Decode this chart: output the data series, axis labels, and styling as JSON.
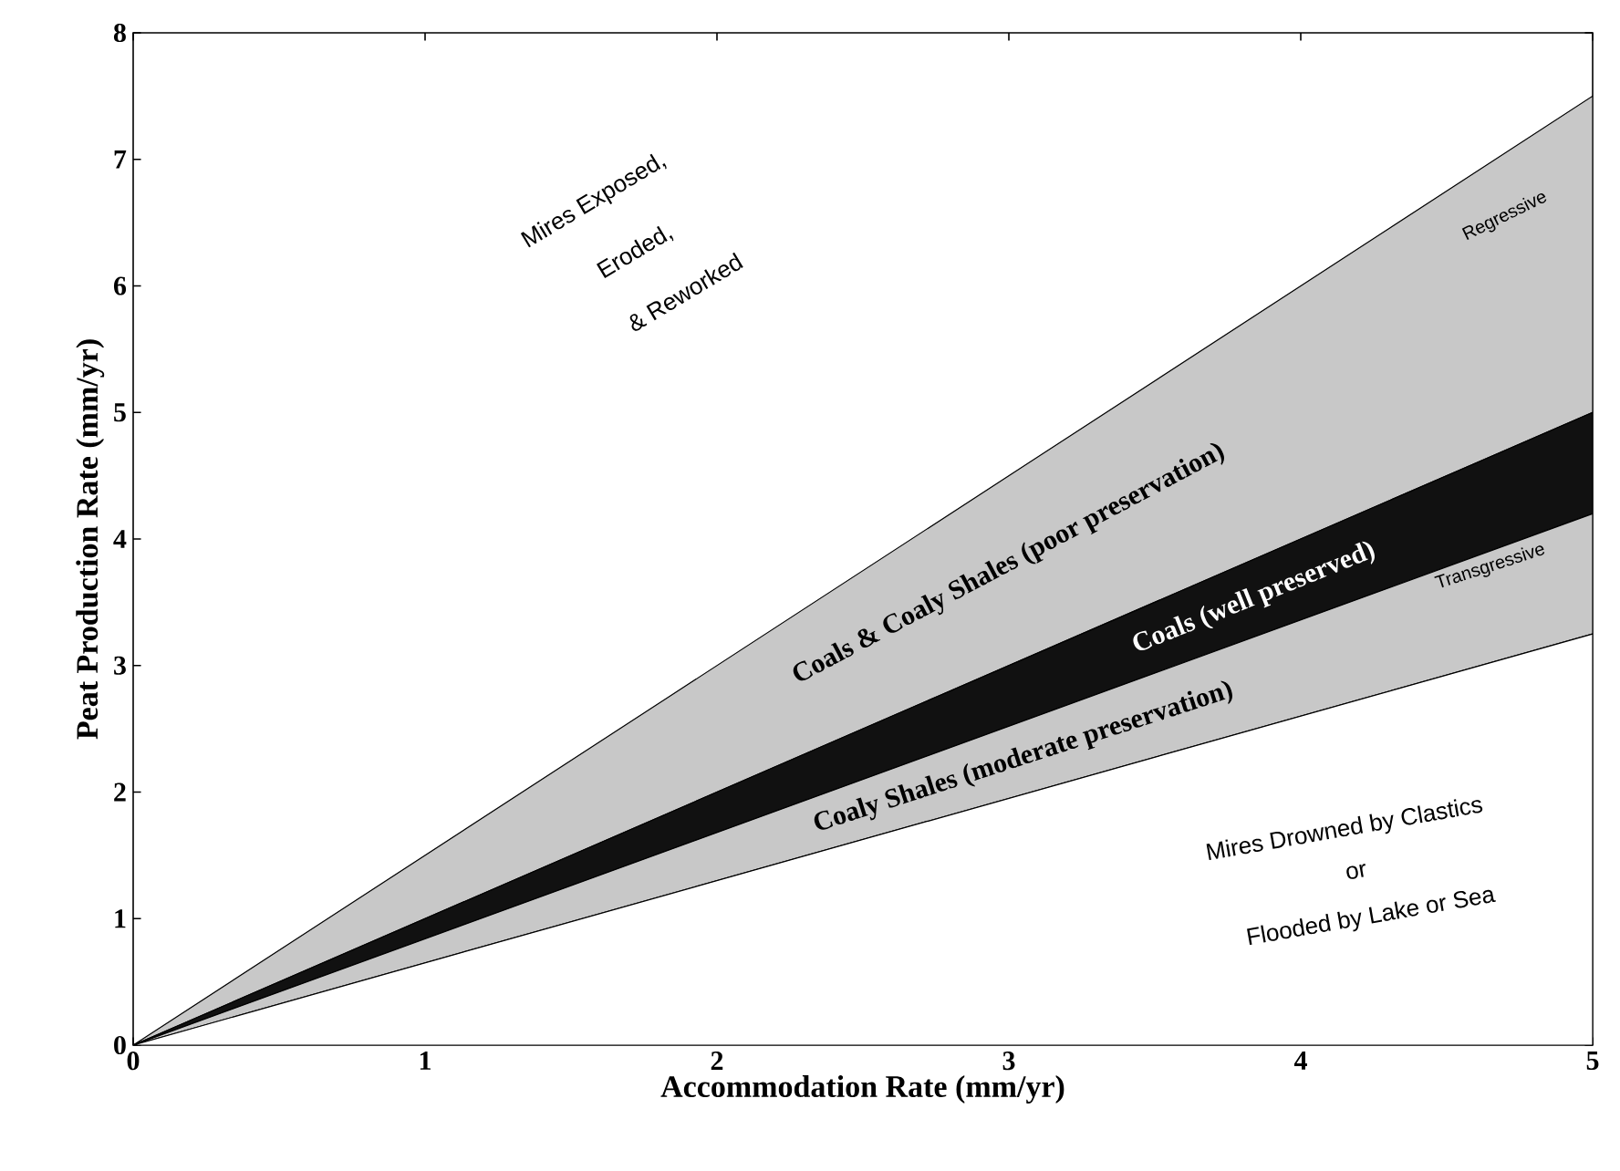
{
  "chart_data": {
    "type": "area",
    "stacked": true,
    "xlabel": "Accommodation Rate (mm/yr)",
    "ylabel": "Peat Production Rate (mm/yr)",
    "x": [
      0,
      5
    ],
    "series": [
      {
        "color": "#ffffff",
        "values": [
          0,
          3.25
        ]
      },
      {
        "color": "#c8c8c8",
        "values": [
          0,
          0.95
        ]
      },
      {
        "color": "#111111",
        "values": [
          0,
          0.8
        ]
      },
      {
        "color": "#c8c8c8",
        "values": [
          0,
          2.5
        ]
      }
    ],
    "xlim": [
      0,
      5
    ],
    "ylim": [
      0,
      8
    ],
    "xticks": [
      0,
      1,
      2,
      3,
      4,
      5
    ],
    "yticks": [
      0,
      1,
      2,
      3,
      4,
      5,
      6,
      7,
      8
    ],
    "grid": false,
    "annotations": [
      "Mires Exposed,",
      "Eroded,",
      "& Reworked",
      "Regressive",
      "Coals & Coaly Shales (poor preservation)",
      "Coals (well preserved)",
      "Transgressive",
      "Coaly Shales (moderate preservation)",
      "Mires Drowned by Clastics",
      "or",
      "Flooded by Lake or Sea"
    ]
  }
}
